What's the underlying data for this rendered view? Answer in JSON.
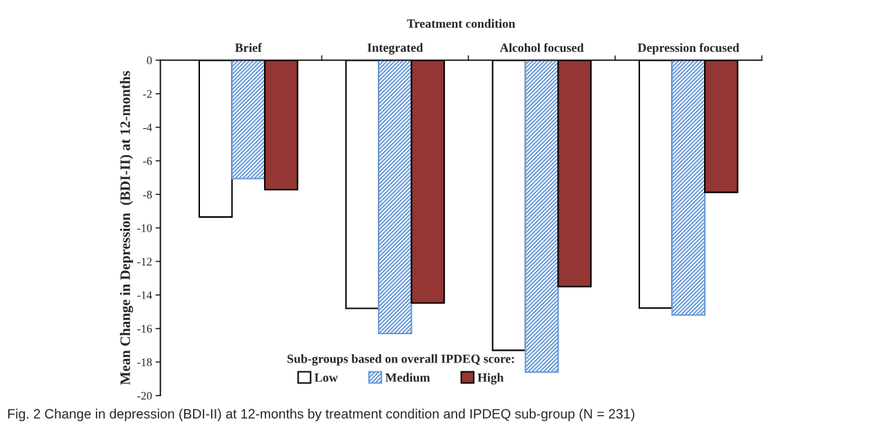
{
  "chart_data": {
    "type": "bar",
    "title": "Treatment condition",
    "ylabel": "Mean Change in Depression  (BDI-II) at 12-months",
    "categories": [
      "Brief",
      "Integrated",
      "Alcohol focused",
      "Depression focused"
    ],
    "series": [
      {
        "name": "Low",
        "color": "#ffffff",
        "values": [
          -9.35,
          -14.8,
          -17.3,
          -14.78
        ]
      },
      {
        "name": "Medium",
        "color": "#6a9bd8",
        "values": [
          -7.06,
          -16.3,
          -18.6,
          -15.2
        ]
      },
      {
        "name": "High",
        "color": "#943634",
        "values": [
          -7.72,
          -14.48,
          -13.5,
          -7.88
        ]
      }
    ],
    "ylim": [
      -20,
      0
    ],
    "yticks": [
      -20,
      -18,
      -16,
      -14,
      -12,
      -10,
      -8,
      -6,
      -4,
      -2,
      0
    ],
    "legend": "bottom",
    "legend_title": "Sub-groups based on overall IPDEQ score:",
    "grid": false,
    "annotations": [
      "Fig. 2 Change in depression (BDI-II) at 12-months by treatment condition and IPDEQ sub-group (N = 231)"
    ]
  }
}
